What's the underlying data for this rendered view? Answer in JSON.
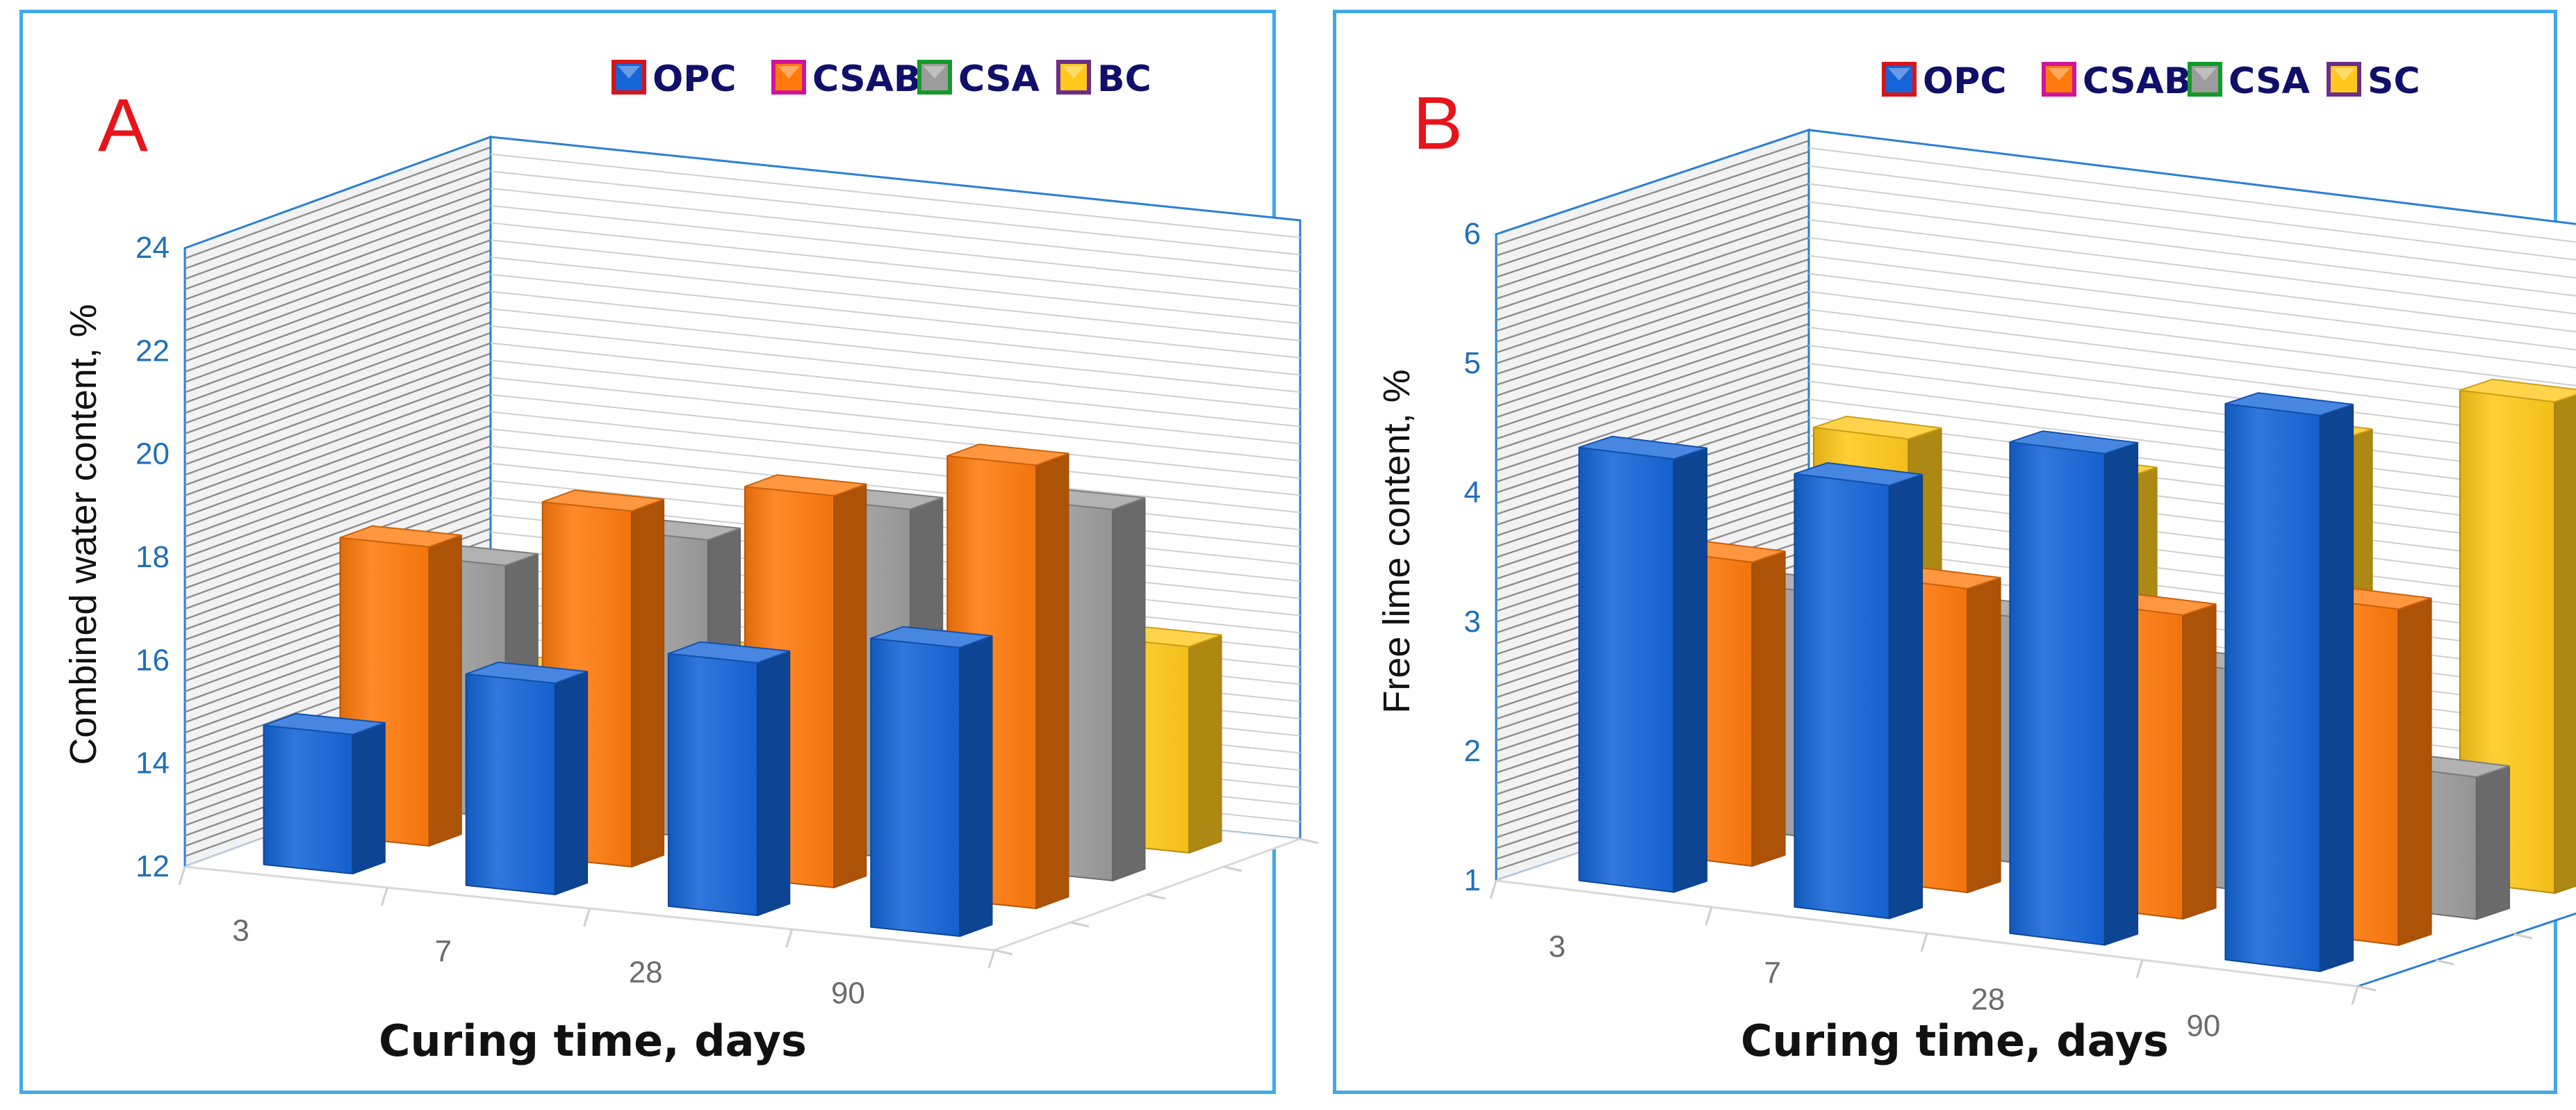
{
  "chart_data": [
    {
      "panel": "A",
      "type": "bar",
      "style": "3d-clustered-column",
      "title": "",
      "xlabel": "Curing time, days",
      "ylabel": "Combined water content, %",
      "ylim": [
        12,
        24
      ],
      "yticks": [
        "12",
        "14",
        "16",
        "18",
        "20",
        "22",
        "24"
      ],
      "categories": [
        "3",
        "7",
        "28",
        "90"
      ],
      "legend_position": "top-right",
      "legend": [
        "OPC",
        "CSAB",
        "CSA",
        "BC"
      ],
      "series": [
        {
          "name": "OPC",
          "color": "#1565d8",
          "values": [
            14.7,
            16.1,
            16.9,
            17.6
          ]
        },
        {
          "name": "CSAB",
          "color": "#ff7a0c",
          "values": [
            17.8,
            18.9,
            19.6,
            20.6
          ]
        },
        {
          "name": "CSA",
          "color": "#9c9c9c",
          "values": [
            16.9,
            17.8,
            18.8,
            19.2
          ]
        },
        {
          "name": "BC",
          "color": "#ffc81a",
          "values": [
            14.2,
            14.9,
            15.3,
            16.0
          ]
        }
      ]
    },
    {
      "panel": "B",
      "type": "bar",
      "style": "3d-clustered-column",
      "title": "",
      "xlabel": "Curing time, days",
      "ylabel": "Free lime content, %",
      "ylim": [
        1,
        6
      ],
      "yticks": [
        "1",
        "2",
        "3",
        "4",
        "5",
        "6"
      ],
      "categories": [
        "3",
        "7",
        "28",
        "90"
      ],
      "legend_position": "top-right",
      "legend": [
        "OPC",
        "CSAB",
        "CSA",
        "SC"
      ],
      "series": [
        {
          "name": "OPC",
          "color": "#1565d8",
          "values": [
            4.35,
            4.35,
            4.8,
            5.3
          ]
        },
        {
          "name": "CSAB",
          "color": "#ff7a0c",
          "values": [
            3.35,
            3.35,
            3.35,
            3.6
          ]
        },
        {
          "name": "CSA",
          "color": "#9c9c9c",
          "values": [
            2.9,
            2.9,
            2.7,
            2.1
          ]
        },
        {
          "name": "SC",
          "color": "#ffc81a",
          "values": [
            3.9,
            3.8,
            4.3,
            4.8
          ]
        }
      ]
    }
  ],
  "colors": {
    "frame": "#41a9e8",
    "axis": "#2b7fd4",
    "wall_shade": "#bdbdbd",
    "legend_border": [
      "#d8141b",
      "#d0149a",
      "#149a2a",
      "#6b2e8a"
    ]
  }
}
